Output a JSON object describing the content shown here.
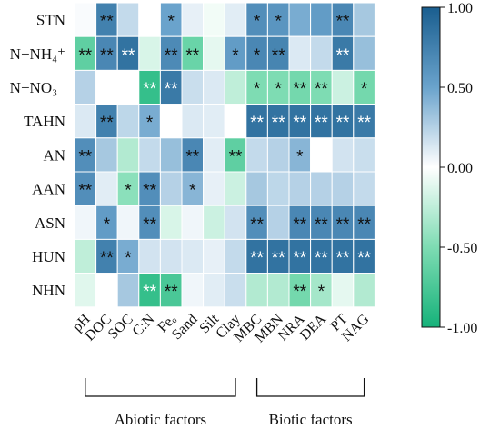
{
  "chart_data": {
    "type": "heatmap",
    "rows": [
      "STN",
      "N−NH₄⁺",
      "N−NO₃⁻",
      "TAHN",
      "AN",
      "AAN",
      "ASN",
      "HUN",
      "NHN"
    ],
    "columns": [
      "pH",
      "DOC",
      "SOC",
      "C:N",
      "Feₒ",
      "Sand",
      "Silt",
      "Clay",
      "MBC",
      "MBN",
      "NRA",
      "DEA",
      "PT",
      "NAG"
    ],
    "values": [
      [
        0.02,
        0.75,
        0.2,
        0.0,
        0.5,
        0.08,
        -0.05,
        0.1,
        0.65,
        0.6,
        0.45,
        0.55,
        0.7,
        0.3
      ],
      [
        -0.65,
        0.7,
        0.85,
        -0.15,
        0.68,
        -0.6,
        -0.1,
        0.55,
        0.7,
        0.72,
        0.12,
        0.2,
        0.8,
        0.35
      ],
      [
        0.25,
        0.0,
        0.0,
        -0.85,
        0.8,
        0.18,
        0.12,
        -0.25,
        -0.5,
        -0.5,
        -0.55,
        -0.5,
        -0.2,
        -0.55
      ],
      [
        0.12,
        0.75,
        0.22,
        0.45,
        0.0,
        0.12,
        0.1,
        0.0,
        0.85,
        0.85,
        0.85,
        0.85,
        0.85,
        0.8
      ],
      [
        0.65,
        0.3,
        -0.3,
        0.2,
        0.35,
        0.7,
        0.1,
        -0.65,
        0.2,
        0.25,
        0.4,
        0.0,
        0.15,
        0.18
      ],
      [
        0.65,
        0.1,
        -0.45,
        0.65,
        0.25,
        0.4,
        0.08,
        -0.2,
        0.3,
        0.22,
        0.25,
        0.25,
        0.25,
        0.2
      ],
      [
        0.05,
        0.55,
        0.05,
        0.65,
        -0.15,
        0.05,
        -0.2,
        0.15,
        0.65,
        0.25,
        0.7,
        0.7,
        0.7,
        0.7
      ],
      [
        -0.25,
        0.75,
        0.45,
        0.15,
        0.15,
        0.12,
        0.08,
        0.2,
        0.85,
        0.85,
        0.85,
        0.85,
        0.85,
        0.85
      ],
      [
        -0.12,
        0.0,
        0.3,
        -0.85,
        -0.75,
        0.05,
        0.1,
        0.18,
        -0.3,
        -0.3,
        -0.55,
        -0.35,
        -0.1,
        -0.3
      ]
    ],
    "stars": [
      [
        "",
        "**",
        "",
        "",
        "*",
        "",
        "",
        "",
        "*",
        "*",
        "",
        "",
        "**",
        ""
      ],
      [
        "**",
        "**",
        "**",
        "",
        "**",
        "**",
        "",
        "*",
        "*",
        "**",
        "",
        "",
        "**",
        ""
      ],
      [
        "",
        "",
        "",
        "**",
        "**",
        "",
        "",
        "",
        "*",
        "*",
        "**",
        "**",
        "",
        "*"
      ],
      [
        "",
        "**",
        "",
        "*",
        "",
        "",
        "",
        "",
        "**",
        "**",
        "**",
        "**",
        "**",
        "**"
      ],
      [
        "**",
        "",
        "",
        "",
        "",
        "**",
        "",
        "**",
        "",
        "",
        "*",
        "",
        "",
        ""
      ],
      [
        "**",
        "",
        "*",
        "**",
        "",
        "*",
        "",
        "",
        "",
        "",
        "",
        "",
        "",
        ""
      ],
      [
        "",
        "*",
        "",
        "**",
        "",
        "",
        "",
        "",
        "**",
        "",
        "**",
        "**",
        "**",
        "**"
      ],
      [
        "",
        "**",
        "*",
        "",
        "",
        "",
        "",
        "",
        "**",
        "**",
        "**",
        "**",
        "**",
        "**"
      ],
      [
        "",
        "",
        "",
        "**",
        "**",
        "",
        "",
        "",
        "",
        "",
        "**",
        "*",
        "",
        ""
      ]
    ],
    "colorbar": {
      "ticks": [
        "1.00",
        "0.50",
        "0.00",
        "-0.50",
        "-1.00"
      ],
      "min": -1,
      "max": 1,
      "low_color": "#16b27a",
      "mid_color": "#ffffff",
      "high_color": "#1a5e8f"
    },
    "groups": [
      {
        "label": "Abiotic factors",
        "columns": [
          0,
          7
        ]
      },
      {
        "label": "Biotic factors",
        "columns": [
          8,
          13
        ]
      }
    ]
  }
}
